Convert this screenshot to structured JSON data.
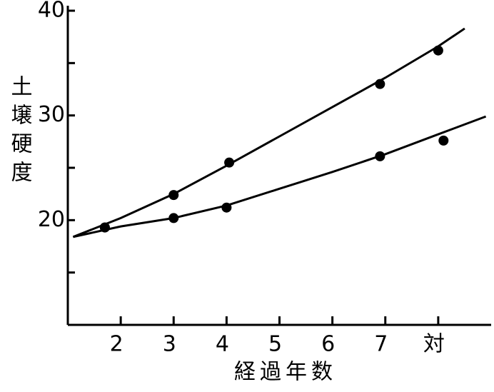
{
  "chart_data": {
    "type": "scatter",
    "ylabel": "土壌硬度",
    "xlabel": "経過年数",
    "xlim": [
      1,
      9
    ],
    "ylim": [
      10,
      40
    ],
    "xticks": [
      2,
      3,
      4,
      5,
      6,
      7,
      {
        "value": 8,
        "label": "対"
      }
    ],
    "yticks": [
      20,
      30,
      40
    ],
    "minor_yticks": [
      15,
      25,
      35
    ],
    "color": "#000000",
    "series": [
      {
        "x": [
          1.7,
          3,
          4.05,
          6.9,
          8
        ],
        "values": [
          19.3,
          22.4,
          25.5,
          33.0,
          36.2
        ]
      },
      {
        "x": [
          1.7,
          3,
          4,
          6.9,
          8.1
        ],
        "values": [
          19.3,
          20.2,
          21.2,
          26.1,
          27.6
        ]
      }
    ],
    "curves": [
      {
        "x": [
          1.1,
          2,
          3,
          4,
          5,
          6,
          7,
          8,
          8.5
        ],
        "values": [
          18.4,
          20.2,
          22.5,
          25.2,
          28.0,
          30.8,
          33.6,
          36.6,
          38.3
        ]
      },
      {
        "x": [
          1.1,
          2,
          3,
          4,
          5,
          6,
          7,
          8,
          8.9
        ],
        "values": [
          18.4,
          19.4,
          20.2,
          21.4,
          23.0,
          24.6,
          26.3,
          28.2,
          29.9
        ]
      }
    ]
  }
}
